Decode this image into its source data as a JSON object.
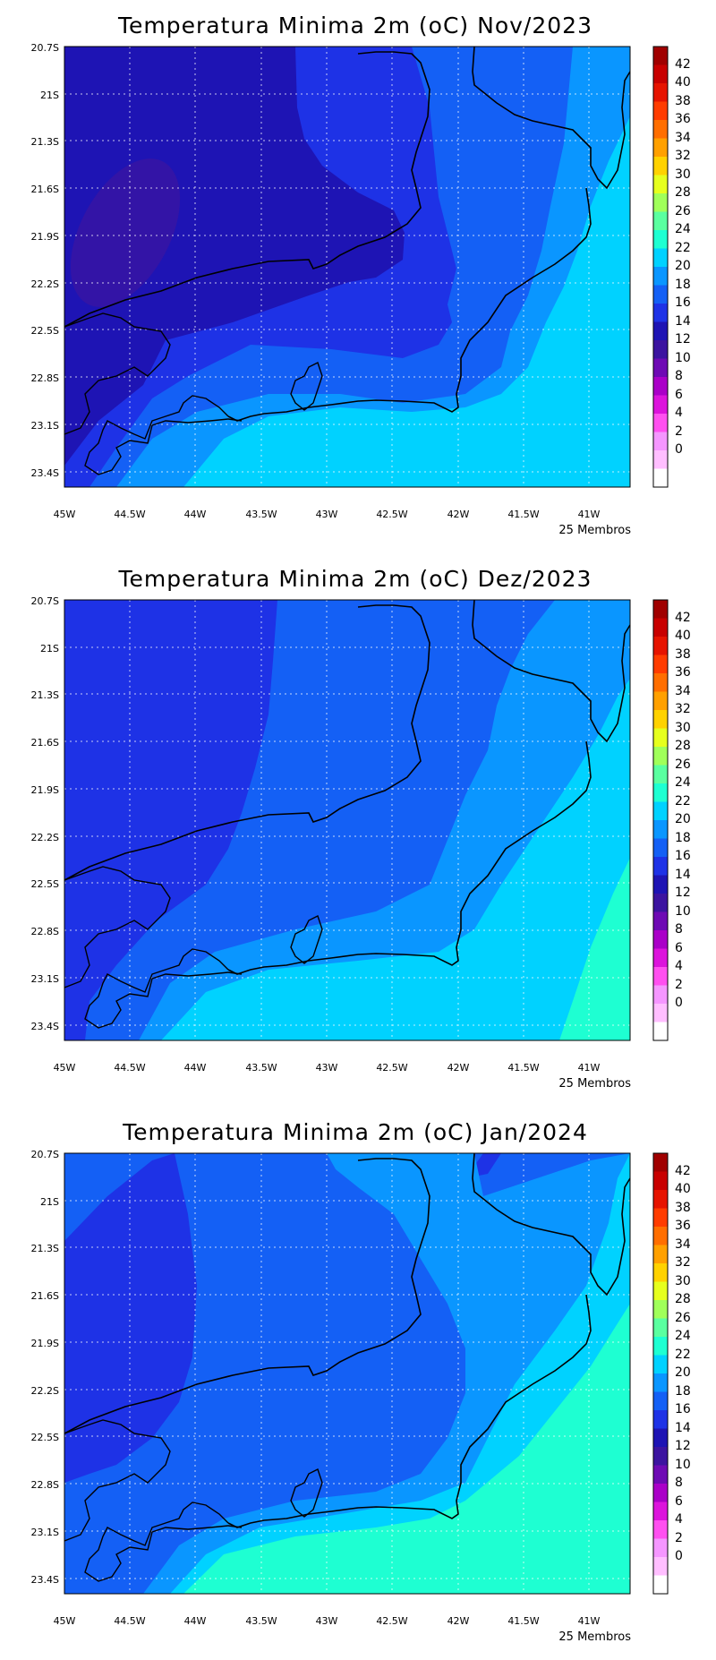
{
  "map_panels": [
    {
      "title": "Temperatura Minima 2m (oC) Nov/2023",
      "footer": "25 Membros",
      "fields": {
        "lat_labels": [
          "20.7S",
          "21S",
          "21.3S",
          "21.6S",
          "21.9S",
          "22.2S",
          "22.5S",
          "22.8S",
          "23.1S",
          "23.4S"
        ],
        "lon_labels": [
          "45W",
          "44.5W",
          "44W",
          "43.5W",
          "43W",
          "42.5W",
          "42W",
          "41.5W",
          "41W"
        ]
      }
    },
    {
      "title": "Temperatura Minima 2m (oC) Dez/2023",
      "footer": "25 Membros",
      "fields": {
        "lat_labels": [
          "20.7S",
          "21S",
          "21.3S",
          "21.6S",
          "21.9S",
          "22.2S",
          "22.5S",
          "22.8S",
          "23.1S",
          "23.4S"
        ],
        "lon_labels": [
          "45W",
          "44.5W",
          "44W",
          "43.5W",
          "43W",
          "42.5W",
          "42W",
          "41.5W",
          "41W"
        ]
      }
    },
    {
      "title": "Temperatura Minima 2m (oC) Jan/2024",
      "footer": "25 Membros",
      "fields": {
        "lat_labels": [
          "20.7S",
          "21S",
          "21.3S",
          "21.6S",
          "21.9S",
          "22.2S",
          "22.5S",
          "22.8S",
          "23.1S",
          "23.4S"
        ],
        "lon_labels": [
          "45W",
          "44.5W",
          "44W",
          "43.5W",
          "43W",
          "42.5W",
          "42W",
          "41.5W",
          "41W"
        ]
      }
    }
  ],
  "colorbar": {
    "labels": [
      "42",
      "40",
      "38",
      "36",
      "34",
      "32",
      "30",
      "28",
      "26",
      "24",
      "22",
      "20",
      "18",
      "16",
      "14",
      "12",
      "10",
      "8",
      "6",
      "4",
      "2",
      "0"
    ],
    "colors": [
      "#a00000",
      "#c80000",
      "#e61400",
      "#ff3c00",
      "#ff6e00",
      "#ffa000",
      "#ffd200",
      "#e6ff1e",
      "#a0ff5a",
      "#5affa0",
      "#1effd2",
      "#00d2ff",
      "#0a96ff",
      "#1460f5",
      "#1e32e6",
      "#1e14b4",
      "#3c14a0",
      "#6e0ab4",
      "#aa00c8",
      "#dc14dc",
      "#ff50f0",
      "#f596ff",
      "#ffbeff",
      "#ffffff"
    ]
  },
  "palette": {
    "c12_14": "#3c14a0",
    "c14_16": "#1e14b4",
    "c16_18": "#1e32e6",
    "c18_20": "#1460f5",
    "c20_22": "#0a96ff",
    "c22_24": "#00d2ff",
    "c24_26": "#1effd2"
  }
}
